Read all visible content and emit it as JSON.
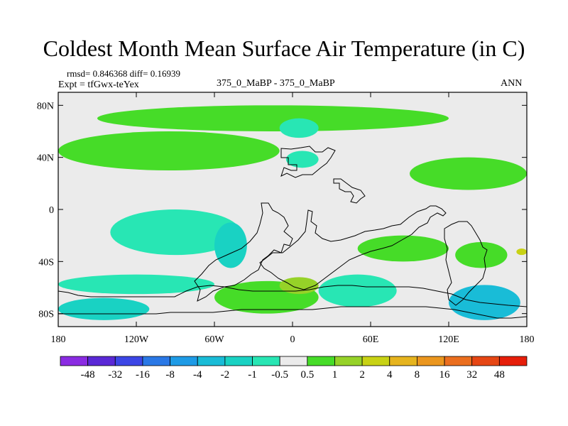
{
  "chart_data": {
    "type": "heatmap",
    "title": "Coldest Month Mean Surface Air Temperature (in C)",
    "stats_line": "rmsd= 0.846368 diff= 0.16939",
    "experiment_line": "Expt = tfGwx-teYex",
    "center_label": "375_0_MaBP - 375_0_MaBP",
    "right_label": "ANN",
    "x_ticks": [
      "180",
      "120W",
      "60W",
      "0",
      "60E",
      "120E",
      "180"
    ],
    "y_ticks": [
      "80N",
      "40N",
      "0",
      "40S",
      "80S"
    ],
    "xlim": [
      -180,
      180
    ],
    "ylim": [
      -90,
      90
    ],
    "colorbar": {
      "labels": [
        "-48",
        "-32",
        "-16",
        "-8",
        "-4",
        "-2",
        "-1",
        "-0.5",
        "0.5",
        "1",
        "2",
        "4",
        "8",
        "16",
        "32",
        "48"
      ],
      "colors": [
        "#8a2be2",
        "#5a28d6",
        "#3c46e6",
        "#2a78e6",
        "#1e9be6",
        "#19bcd7",
        "#19d2c3",
        "#28e6b4",
        "#ebebeb",
        "#46dc28",
        "#96d228",
        "#c8d214",
        "#e6b41e",
        "#eb961e",
        "#eb6e1e",
        "#e64614",
        "#e61e0a"
      ]
    },
    "regions": [
      {
        "name": "band-70N",
        "value": 1.5,
        "level": 9,
        "lon": [
          -150,
          120
        ],
        "lat": [
          60,
          80
        ]
      },
      {
        "name": "band-40N",
        "value": 1.5,
        "level": 9,
        "lon": [
          -180,
          -10
        ],
        "lat": [
          30,
          60
        ]
      },
      {
        "name": "band-30N-east",
        "value": 1.5,
        "level": 9,
        "lon": [
          90,
          180
        ],
        "lat": [
          15,
          40
        ]
      },
      {
        "name": "arctic-cool",
        "value": -0.7,
        "level": 7,
        "lon": [
          -10,
          20
        ],
        "lat": [
          55,
          70
        ]
      },
      {
        "name": "north-atlantic-cool",
        "value": -0.7,
        "level": 7,
        "lon": [
          -5,
          20
        ],
        "lat": [
          32,
          45
        ]
      },
      {
        "name": "tropical-pacific-cool",
        "value": -0.7,
        "level": 7,
        "lon": [
          -140,
          -40
        ],
        "lat": [
          -35,
          0
        ]
      },
      {
        "name": "south-atlantic-cool",
        "value": -1.5,
        "level": 6,
        "lon": [
          -60,
          -35
        ],
        "lat": [
          -45,
          -10
        ]
      },
      {
        "name": "southern-ocean-cool",
        "value": -0.7,
        "level": 7,
        "lon": [
          -180,
          -60
        ],
        "lat": [
          -65,
          -50
        ]
      },
      {
        "name": "antarctic-coast-west",
        "value": -1.5,
        "level": 6,
        "lon": [
          -180,
          -110
        ],
        "lat": [
          -85,
          -68
        ]
      },
      {
        "name": "south-america-warm",
        "value": 1.5,
        "level": 9,
        "lon": [
          -60,
          20
        ],
        "lat": [
          -80,
          -55
        ]
      },
      {
        "name": "south-africa-warm",
        "value": 3.0,
        "level": 10,
        "lon": [
          -10,
          20
        ],
        "lat": [
          -65,
          -52
        ]
      },
      {
        "name": "indian-ocean-warm",
        "value": 1.5,
        "level": 9,
        "lon": [
          50,
          120
        ],
        "lat": [
          -40,
          -20
        ]
      },
      {
        "name": "southern-indian-cool",
        "value": -0.7,
        "level": 7,
        "lon": [
          20,
          80
        ],
        "lat": [
          -75,
          -50
        ]
      },
      {
        "name": "australia-warm",
        "value": 1.5,
        "level": 9,
        "lon": [
          125,
          165
        ],
        "lat": [
          -45,
          -25
        ]
      },
      {
        "name": "antarctic-coast-east",
        "value": -2.5,
        "level": 5,
        "lon": [
          120,
          175
        ],
        "lat": [
          -85,
          -58
        ]
      },
      {
        "name": "east-pacific-warm",
        "value": 5.0,
        "level": 11,
        "lon": [
          172,
          180
        ],
        "lat": [
          -35,
          -30
        ]
      }
    ]
  }
}
